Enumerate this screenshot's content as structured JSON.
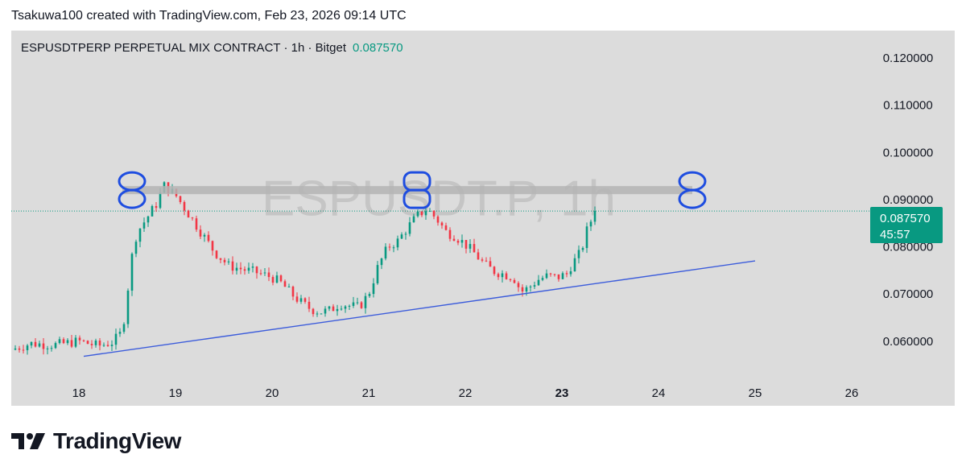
{
  "credit": "Tsakuwa100 created with TradingView.com, Feb 23, 2026 09:14 UTC",
  "title": {
    "symbol_line": "ESPUSDTPERP PERPETUAL MIX CONTRACT · 1h · Bitget",
    "last_price": "0.087570"
  },
  "watermark": "ESPUSDT.P, 1h",
  "price_badge": {
    "price": "0.087570",
    "countdown": "45:57"
  },
  "brand": {
    "name": "TradingView",
    "logo_icon": "tradingview-logo-icon"
  },
  "colors": {
    "up": "#089981",
    "down": "#f23645",
    "annotation": "#1e4de0",
    "trendline": "#3c5cdb",
    "resistance": "#b4b4b4",
    "badge": "#089981"
  },
  "chart_data": {
    "type": "candlestick",
    "x_unit": "day of month (Feb 2026)",
    "xlim": [
      17.3,
      26.2
    ],
    "ylim": [
      0.0528,
      0.1258
    ],
    "x_ticks": [
      {
        "v": 18,
        "label": "18"
      },
      {
        "v": 19,
        "label": "19"
      },
      {
        "v": 20,
        "label": "20"
      },
      {
        "v": 21,
        "label": "21"
      },
      {
        "v": 22,
        "label": "22"
      },
      {
        "v": 23,
        "label": "23",
        "bold": true
      },
      {
        "v": 24,
        "label": "24"
      },
      {
        "v": 25,
        "label": "25"
      },
      {
        "v": 26,
        "label": "26"
      }
    ],
    "y_ticks": [
      {
        "v": 0.12,
        "label": "0.120000"
      },
      {
        "v": 0.11,
        "label": "0.110000"
      },
      {
        "v": 0.1,
        "label": "0.100000"
      },
      {
        "v": 0.09,
        "label": "0.090000"
      },
      {
        "v": 0.08,
        "label": "0.080000"
      },
      {
        "v": 0.07,
        "label": "0.070000"
      },
      {
        "v": 0.06,
        "label": "0.060000"
      }
    ],
    "last_price": 0.08757,
    "close_path": [
      [
        17.3,
        0.0582
      ],
      [
        17.5,
        0.0595
      ],
      [
        17.75,
        0.0592
      ],
      [
        18.0,
        0.06
      ],
      [
        18.2,
        0.059
      ],
      [
        18.35,
        0.0598
      ],
      [
        18.45,
        0.062
      ],
      [
        18.5,
        0.07
      ],
      [
        18.55,
        0.078
      ],
      [
        18.6,
        0.083
      ],
      [
        18.7,
        0.086
      ],
      [
        18.8,
        0.089
      ],
      [
        18.88,
        0.093
      ],
      [
        19.0,
        0.091
      ],
      [
        19.1,
        0.088
      ],
      [
        19.2,
        0.085
      ],
      [
        19.3,
        0.082
      ],
      [
        19.4,
        0.079
      ],
      [
        19.55,
        0.076
      ],
      [
        19.7,
        0.0752
      ],
      [
        19.85,
        0.0745
      ],
      [
        20.0,
        0.0735
      ],
      [
        20.1,
        0.0722
      ],
      [
        20.2,
        0.07
      ],
      [
        20.3,
        0.0682
      ],
      [
        20.4,
        0.0668
      ],
      [
        20.5,
        0.0662
      ],
      [
        20.6,
        0.0665
      ],
      [
        20.7,
        0.068
      ],
      [
        20.8,
        0.0675
      ],
      [
        20.9,
        0.0672
      ],
      [
        21.0,
        0.07
      ],
      [
        21.1,
        0.076
      ],
      [
        21.2,
        0.08
      ],
      [
        21.3,
        0.0812
      ],
      [
        21.4,
        0.084
      ],
      [
        21.5,
        0.0865
      ],
      [
        21.6,
        0.088
      ],
      [
        21.7,
        0.086
      ],
      [
        21.8,
        0.0832
      ],
      [
        21.9,
        0.0822
      ],
      [
        22.0,
        0.0805
      ],
      [
        22.1,
        0.0785
      ],
      [
        22.2,
        0.0762
      ],
      [
        22.3,
        0.0748
      ],
      [
        22.4,
        0.0742
      ],
      [
        22.5,
        0.0735
      ],
      [
        22.58,
        0.0705
      ],
      [
        22.65,
        0.0712
      ],
      [
        22.75,
        0.073
      ],
      [
        22.85,
        0.0738
      ],
      [
        22.95,
        0.0735
      ],
      [
        23.05,
        0.0742
      ],
      [
        23.1,
        0.0762
      ],
      [
        23.2,
        0.079
      ],
      [
        23.25,
        0.083
      ],
      [
        23.3,
        0.0855
      ],
      [
        23.36,
        0.08757
      ]
    ],
    "resistance_line": {
      "x": [
        18.45,
        24.35
      ],
      "y": 0.092
    },
    "trendline": {
      "x": [
        18.05,
        25.0
      ],
      "y": [
        0.0568,
        0.077
      ]
    },
    "markers": [
      {
        "x": 18.55,
        "y": 0.092,
        "shape": "circle-8"
      },
      {
        "x": 21.5,
        "y": 0.092,
        "shape": "rounded-8"
      },
      {
        "x": 24.35,
        "y": 0.092,
        "shape": "circle-8"
      }
    ]
  }
}
